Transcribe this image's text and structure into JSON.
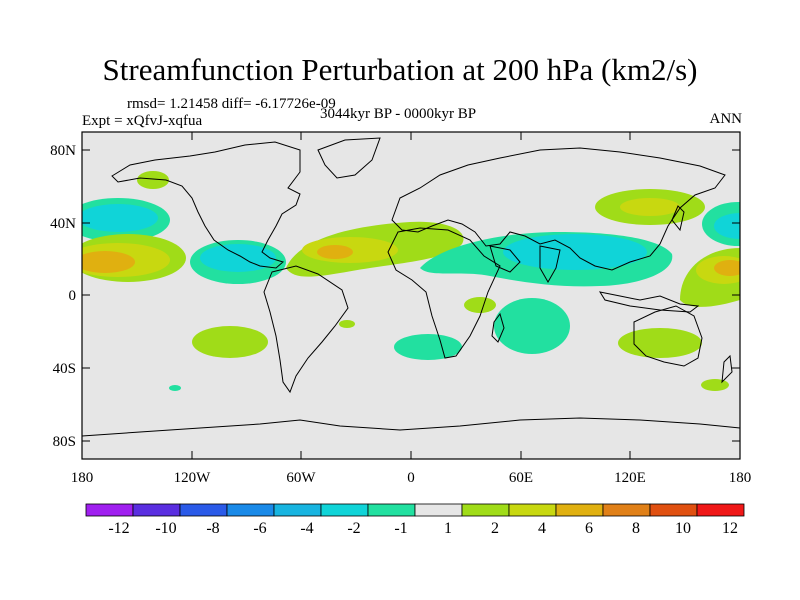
{
  "title": "Streamfunction Perturbation at 200 hPa (km2/s)",
  "stats": "rmsd= 1.21458 diff= -6.17726e-09",
  "experiment": "Expt = xQfvJ-xqfua",
  "period": "3044kyr BP - 0000kyr BP",
  "season": "ANN",
  "lat_labels": [
    "80N",
    "40N",
    "0",
    "40S",
    "80S"
  ],
  "lon_labels": [
    "180",
    "120W",
    "60W",
    "0",
    "60E",
    "120E",
    "180"
  ],
  "colorbar": {
    "labels": [
      "-12",
      "-10",
      "-8",
      "-6",
      "-4",
      "-2",
      "-1",
      "1",
      "2",
      "4",
      "6",
      "8",
      "10",
      "12"
    ],
    "colors": [
      "#a020f0",
      "#5a2ee0",
      "#2a5ae8",
      "#1a8ae8",
      "#17b4e0",
      "#10d4d8",
      "#22e0a0",
      "#e6e6e6",
      "#a0dc18",
      "#c8d810",
      "#e0b010",
      "#e08018",
      "#e05010",
      "#f01818"
    ]
  },
  "colors": {
    "background": "#e6e6e6",
    "positive_1": "#a0dc18",
    "positive_2": "#c8d810",
    "positive_3": "#e0b010",
    "negative_1": "#22e0a0",
    "negative_2": "#10d4d8"
  }
}
